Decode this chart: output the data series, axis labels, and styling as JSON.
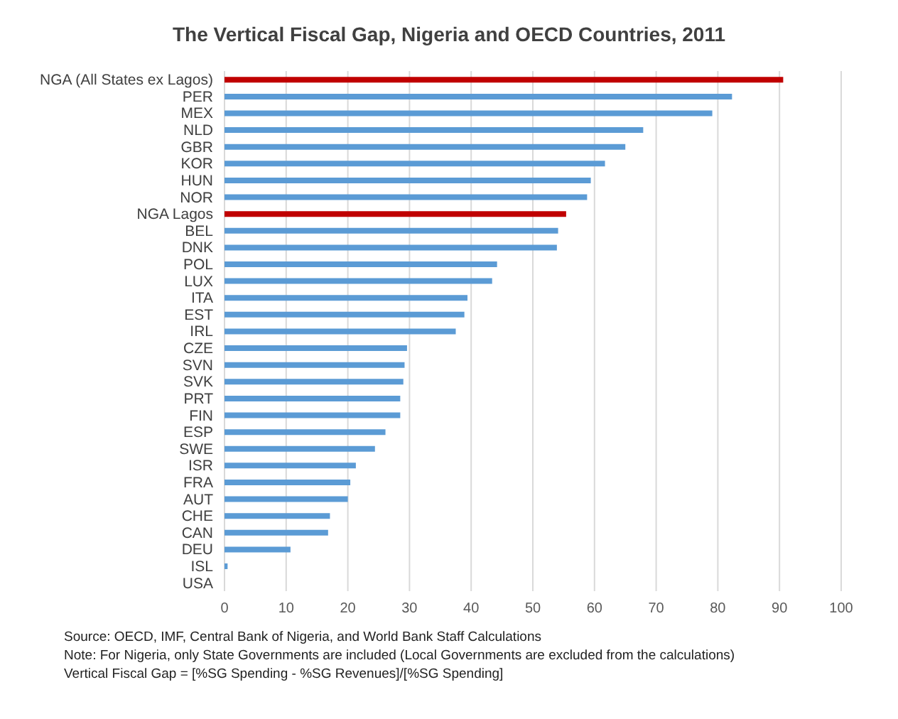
{
  "chart_data": {
    "type": "bar",
    "orientation": "horizontal",
    "title": "The Vertical Fiscal Gap, Nigeria and OECD Countries, 2011",
    "categories": [
      "NGA (All States ex Lagos)",
      "PER",
      "MEX",
      "NLD",
      "GBR",
      "KOR",
      "HUN",
      "NOR",
      "NGA Lagos",
      "BEL",
      "DNK",
      "POL",
      "LUX",
      "ITA",
      "EST",
      "IRL",
      "CZE",
      "SVN",
      "SVK",
      "PRT",
      "FIN",
      "ESP",
      "SWE",
      "ISR",
      "FRA",
      "AUT",
      "CHE",
      "CAN",
      "DEU",
      "ISL",
      "USA"
    ],
    "values": [
      90.6,
      82.3,
      79.1,
      67.9,
      65.0,
      61.7,
      59.4,
      58.8,
      55.4,
      54.1,
      53.9,
      44.2,
      43.4,
      39.4,
      38.9,
      37.5,
      29.6,
      29.2,
      29.0,
      28.5,
      28.5,
      26.1,
      24.4,
      21.3,
      20.4,
      20.0,
      17.1,
      16.8,
      10.7,
      0.5,
      0
    ],
    "colors": [
      "#c00000",
      "#5b9bd5",
      "#5b9bd5",
      "#5b9bd5",
      "#5b9bd5",
      "#5b9bd5",
      "#5b9bd5",
      "#5b9bd5",
      "#c00000",
      "#5b9bd5",
      "#5b9bd5",
      "#5b9bd5",
      "#5b9bd5",
      "#5b9bd5",
      "#5b9bd5",
      "#5b9bd5",
      "#5b9bd5",
      "#5b9bd5",
      "#5b9bd5",
      "#5b9bd5",
      "#5b9bd5",
      "#5b9bd5",
      "#5b9bd5",
      "#5b9bd5",
      "#5b9bd5",
      "#5b9bd5",
      "#5b9bd5",
      "#5b9bd5",
      "#5b9bd5",
      "#5b9bd5",
      "#5b9bd5"
    ],
    "xlim": [
      0,
      100
    ],
    "xticks": [
      0,
      10,
      20,
      30,
      40,
      50,
      60,
      70,
      80,
      90,
      100
    ],
    "grid": "x",
    "legend": false,
    "annotations": [
      "Source: OECD, IMF, Central Bank of Nigeria, and World Bank Staff Calculations",
      "Note: For Nigeria, only State Governments are included (Local Governments are excluded from the calculations)",
      "Vertical Fiscal Gap = [%SG Spending - %SG Revenues]/[%SG Spending]"
    ]
  }
}
